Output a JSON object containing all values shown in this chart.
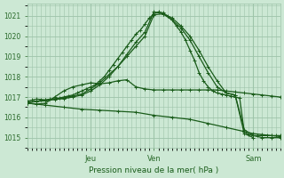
{
  "title": "",
  "xlabel": "Pression niveau de la mer( hPa )",
  "ylabel": "",
  "bg_color": "#cce8d4",
  "plot_bg_color": "#cce8d4",
  "grid_color": "#9ec4aa",
  "line_color": "#1a5c1a",
  "tick_color": "#2a6a2a",
  "label_color": "#1a5c1a",
  "yticks": [
    1015,
    1016,
    1017,
    1018,
    1019,
    1020,
    1021
  ],
  "ylim": [
    1014.5,
    1021.6
  ],
  "xlim": [
    0,
    56
  ],
  "xtick_positions": [
    14,
    28,
    50
  ],
  "xtick_labels": [
    "Jeu",
    "Ven",
    "Sam"
  ],
  "vlines": [
    14,
    28,
    50
  ],
  "series": [
    {
      "x": [
        0,
        1,
        2,
        3,
        4,
        5,
        6,
        7,
        8,
        9,
        10,
        11,
        12,
        13,
        14,
        15,
        16,
        17,
        18,
        19,
        20,
        21,
        22,
        23,
        24,
        25,
        26,
        27,
        28,
        29,
        30,
        31,
        32,
        33,
        34,
        35,
        36,
        37,
        38,
        39,
        40,
        41,
        42,
        43,
        44,
        45,
        46,
        47,
        48,
        49,
        50,
        51,
        52,
        53,
        54,
        55,
        56
      ],
      "y": [
        1016.8,
        1016.85,
        1016.9,
        1016.88,
        1016.86,
        1016.9,
        1016.92,
        1016.95,
        1017.0,
        1017.05,
        1017.1,
        1017.2,
        1017.3,
        1017.4,
        1017.5,
        1017.6,
        1017.8,
        1018.0,
        1018.3,
        1018.6,
        1018.9,
        1019.2,
        1019.5,
        1019.8,
        1020.1,
        1020.3,
        1020.6,
        1020.9,
        1021.1,
        1021.2,
        1021.15,
        1021.0,
        1020.8,
        1020.5,
        1020.2,
        1019.8,
        1019.3,
        1018.8,
        1018.2,
        1017.8,
        1017.5,
        1017.3,
        1017.2,
        1017.15,
        1017.1,
        1017.05,
        1017.0,
        1016.95,
        1015.3,
        1015.15,
        1015.1,
        1015.1,
        1015.1,
        1015.1,
        1015.1,
        1015.1,
        1015.1
      ]
    },
    {
      "x": [
        0,
        2,
        4,
        6,
        8,
        10,
        12,
        14,
        16,
        18,
        20,
        22,
        24,
        26,
        28,
        30,
        32,
        34,
        36,
        38,
        40,
        42,
        44,
        46,
        48,
        50,
        52,
        54,
        56
      ],
      "y": [
        1016.75,
        1016.8,
        1016.85,
        1016.9,
        1016.95,
        1017.05,
        1017.15,
        1017.4,
        1017.7,
        1018.1,
        1018.5,
        1019.0,
        1019.5,
        1020.0,
        1021.05,
        1021.1,
        1020.9,
        1020.5,
        1020.0,
        1019.3,
        1018.5,
        1017.8,
        1017.2,
        1017.1,
        1015.4,
        1015.1,
        1015.0,
        1015.0,
        1015.0
      ]
    },
    {
      "x": [
        0,
        2,
        4,
        6,
        8,
        10,
        12,
        14,
        16,
        18,
        20,
        22,
        24,
        26,
        28,
        30,
        32,
        34,
        36,
        38,
        40,
        42,
        44,
        46,
        48,
        50,
        52,
        54,
        56
      ],
      "y": [
        1016.7,
        1016.65,
        1016.7,
        1017.0,
        1017.3,
        1017.5,
        1017.6,
        1017.7,
        1017.65,
        1017.7,
        1017.8,
        1017.85,
        1017.5,
        1017.4,
        1017.35,
        1017.35,
        1017.35,
        1017.35,
        1017.35,
        1017.35,
        1017.35,
        1017.35,
        1017.3,
        1017.25,
        1017.2,
        1017.15,
        1017.1,
        1017.05,
        1017.0
      ]
    },
    {
      "x": [
        0,
        2,
        4,
        6,
        8,
        10,
        12,
        14,
        16,
        18,
        20,
        22,
        24,
        26,
        28,
        30,
        32,
        34,
        36,
        38,
        40,
        42,
        44,
        46,
        48,
        50
      ],
      "y": [
        1016.72,
        1016.78,
        1016.82,
        1016.88,
        1016.92,
        1017.0,
        1017.1,
        1017.3,
        1017.6,
        1018.0,
        1018.5,
        1019.1,
        1019.7,
        1020.2,
        1021.2,
        1021.1,
        1020.8,
        1020.4,
        1019.8,
        1019.0,
        1018.2,
        1017.5,
        1017.2,
        1017.1,
        1015.2,
        1015.0
      ]
    },
    {
      "x": [
        0,
        4,
        8,
        12,
        16,
        20,
        24,
        28,
        32,
        36,
        40,
        44,
        48,
        50,
        52,
        54,
        56
      ],
      "y": [
        1016.7,
        1016.6,
        1016.5,
        1016.4,
        1016.35,
        1016.3,
        1016.25,
        1016.1,
        1016.0,
        1015.9,
        1015.7,
        1015.5,
        1015.3,
        1015.2,
        1015.15,
        1015.1,
        1015.05
      ]
    }
  ]
}
